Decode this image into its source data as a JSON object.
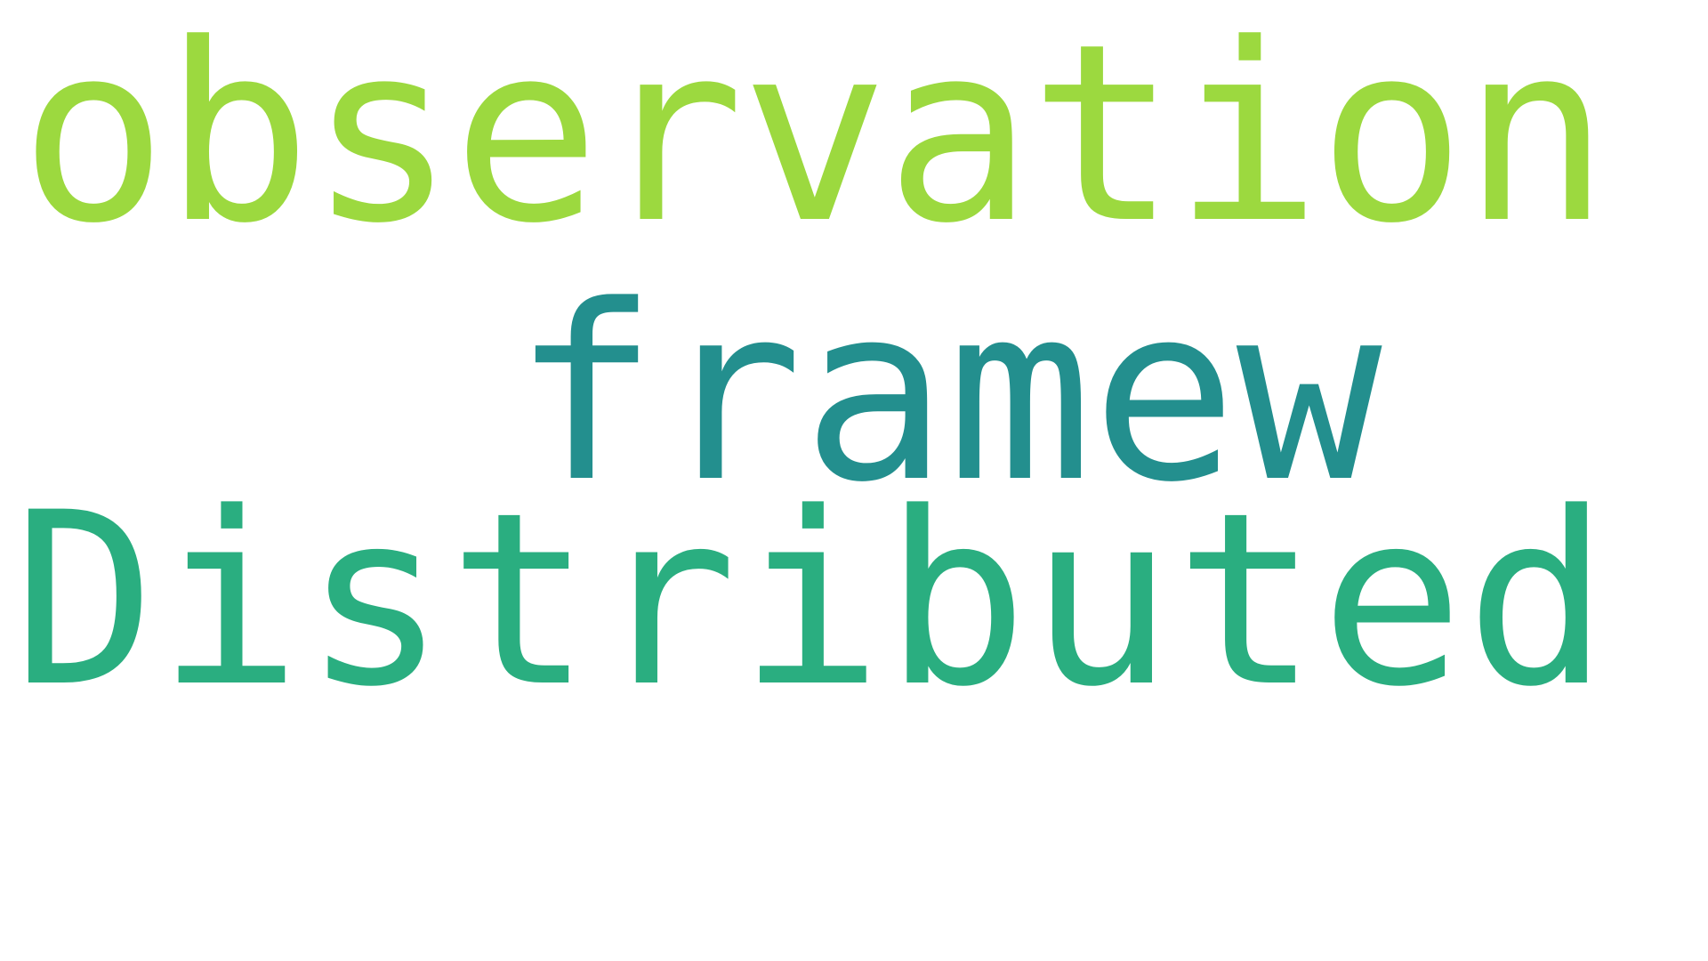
{
  "words": [
    {
      "text": "observation",
      "color": "#9cd93f"
    },
    {
      "text": "framew",
      "color": "#238f8e"
    },
    {
      "text": "Distributed",
      "color": "#2aae80"
    }
  ],
  "background_color": "#ffffff"
}
